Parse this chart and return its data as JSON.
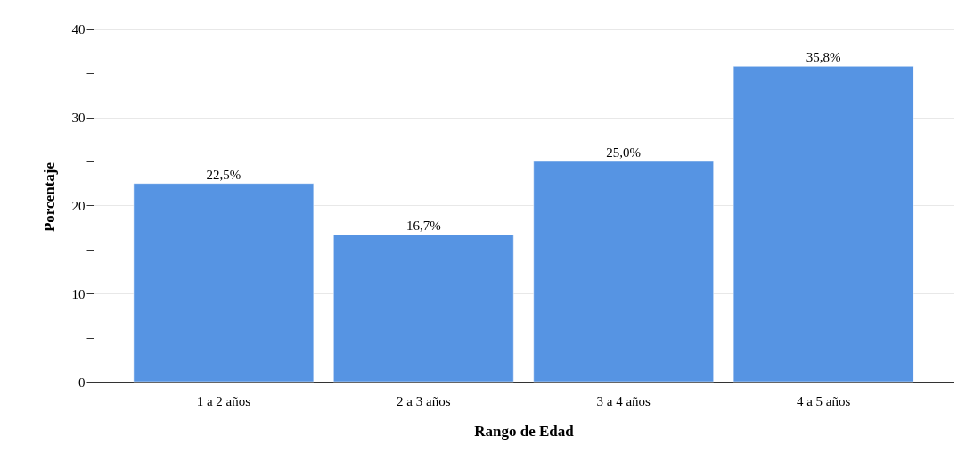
{
  "chart_data": {
    "type": "bar",
    "xlabel": "Rango de Edad",
    "ylabel": "Porcentaje",
    "categories": [
      "1 a 2 años",
      "2 a 3 años",
      "3 a 4 años",
      "4 a 5 años"
    ],
    "values": [
      22.5,
      16.7,
      25.0,
      35.8
    ],
    "value_labels": [
      "22,5%",
      "16,7%",
      "25,0%",
      "35,8%"
    ],
    "color": "#5694e3",
    "ylim": [
      0,
      42
    ],
    "yticks": [
      0,
      {
        "value": 5,
        "label": null
      },
      10,
      {
        "value": 15,
        "label": null
      },
      20,
      {
        "value": 25,
        "label": null
      },
      30,
      {
        "value": 35,
        "label": null
      },
      40
    ],
    "grid": "y"
  }
}
